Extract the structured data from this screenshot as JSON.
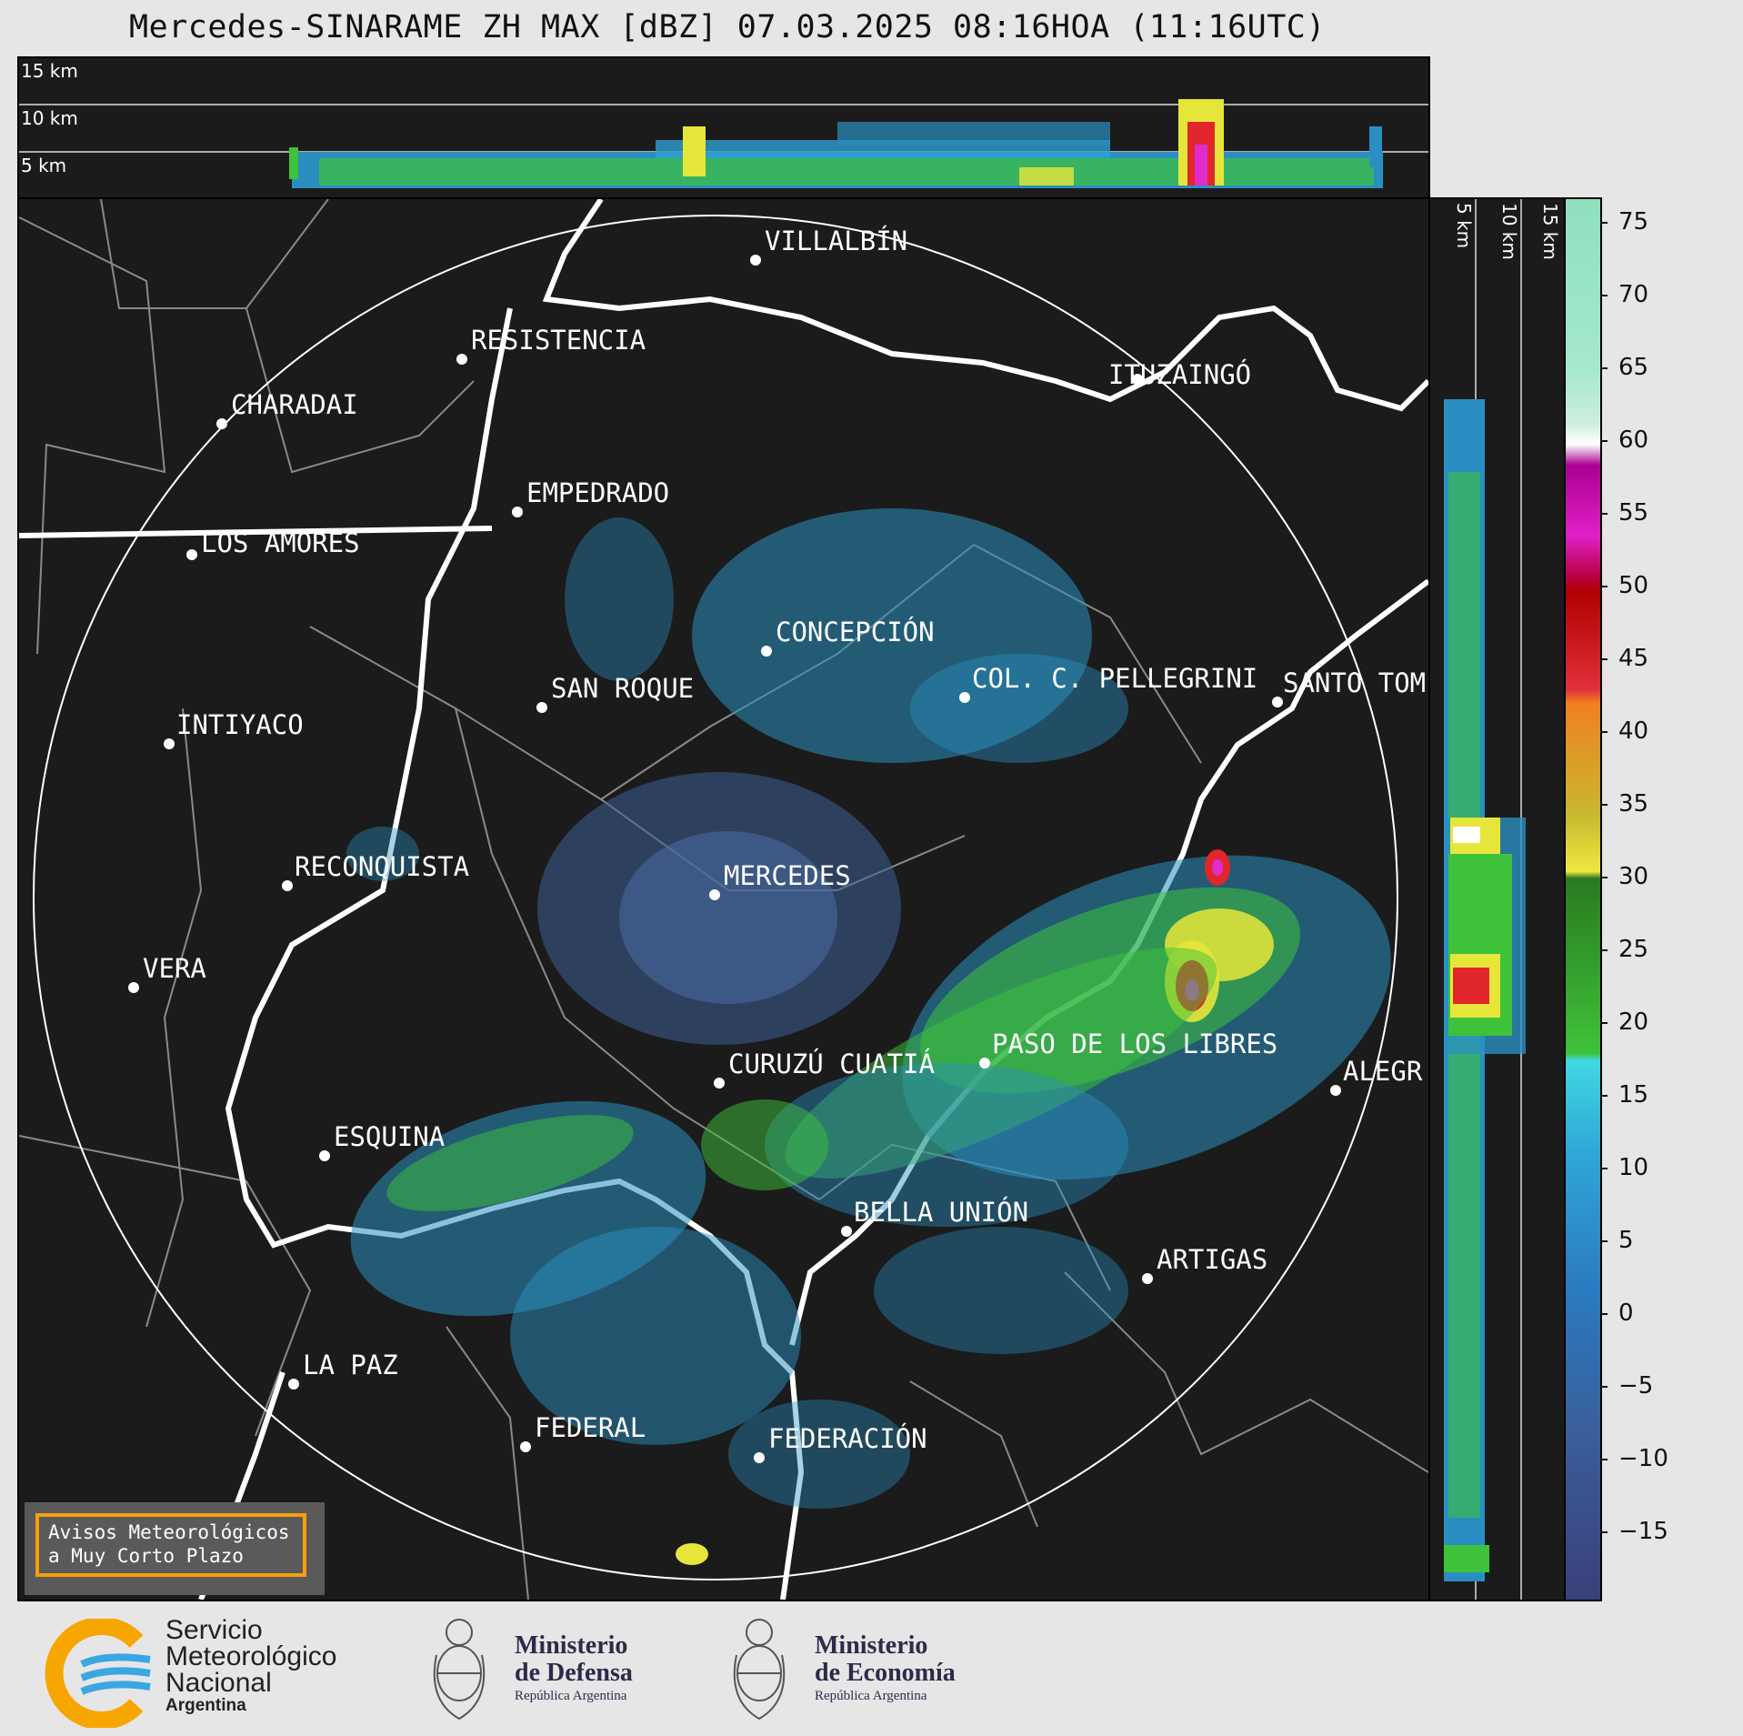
{
  "title": "Mercedes-SINARAME ZH MAX [dBZ] 07.03.2025 08:16HOA (11:16UTC)",
  "height_labels": [
    "15 km",
    "10 km",
    "5 km"
  ],
  "side_height_labels": [
    "5 km",
    "10 km",
    "15 km"
  ],
  "colorbar": {
    "ticks": [
      "75",
      "70",
      "65",
      "60",
      "55",
      "50",
      "45",
      "40",
      "35",
      "30",
      "25",
      "20",
      "15",
      "10",
      "5",
      "0",
      "−5",
      "−10",
      "−15"
    ]
  },
  "cities": [
    {
      "name": "VILLALBÍN"
    },
    {
      "name": "RESISTENCIA"
    },
    {
      "name": "CHARADAI"
    },
    {
      "name": "ITUZAINGÓ"
    },
    {
      "name": "EMPEDRADO"
    },
    {
      "name": "LOS AMORES"
    },
    {
      "name": "CONCEPCIÓN"
    },
    {
      "name": "SAN ROQUE"
    },
    {
      "name": "COL. C. PELLEGRINI"
    },
    {
      "name": "SANTO TOM"
    },
    {
      "name": "INTIYACO"
    },
    {
      "name": "RECONQUISTA"
    },
    {
      "name": "MERCEDES"
    },
    {
      "name": "VERA"
    },
    {
      "name": "PASO DE LOS LIBRES"
    },
    {
      "name": "CURUZÚ CUATIÁ"
    },
    {
      "name": "ALEGR"
    },
    {
      "name": "ESQUINA"
    },
    {
      "name": "BELLA UNIÓN"
    },
    {
      "name": "ARTIGAS"
    },
    {
      "name": "LA PAZ"
    },
    {
      "name": "FEDERAL"
    },
    {
      "name": "FEDERACIÓN"
    }
  ],
  "notice": {
    "text": "Avisos Meteorológicos\na Muy Corto Plazo"
  },
  "footer": {
    "smn": {
      "line1": "Servicio",
      "line2": "Meteorológico",
      "line3": "Nacional",
      "line4": "Argentina"
    },
    "defensa": {
      "line1": "Ministerio",
      "line2": "de Defensa",
      "line3": "República Argentina"
    },
    "economia": {
      "line1": "Ministerio",
      "line2": "de Economía",
      "line3": "República Argentina"
    }
  },
  "colors": {
    "background": "#1b1b1b",
    "page": "#e6e6e6",
    "notice_border": "#f5a00a",
    "smn_orange": "#f7a600",
    "smn_blue": "#39a7e0"
  }
}
